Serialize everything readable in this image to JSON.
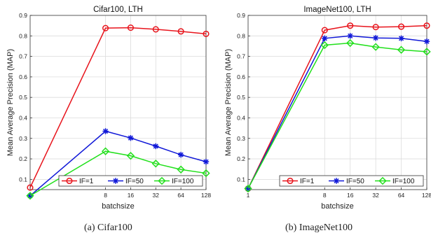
{
  "chart_data": [
    {
      "type": "line",
      "title": "Cifar100, LTH",
      "xlabel": "batchsize",
      "ylabel": "Mean Average Precision (MAP)",
      "x": [
        "1",
        "8",
        "16",
        "32",
        "64",
        "128"
      ],
      "x_scale": "log2",
      "xlim": [
        1,
        128
      ],
      "ylim": [
        0.05,
        0.9
      ],
      "yticks": [
        "0.1",
        "0.2",
        "0.3",
        "0.4",
        "0.5",
        "0.6",
        "0.7",
        "0.8",
        "0.9"
      ],
      "grid": true,
      "legend_position": "bottom",
      "series": [
        {
          "name": "IF=1",
          "color": "#e8141c",
          "marker": "circle",
          "values": [
            0.06,
            0.838,
            0.84,
            0.832,
            0.822,
            0.81
          ]
        },
        {
          "name": "IF=50",
          "color": "#1018d8",
          "marker": "star",
          "values": [
            0.02,
            0.335,
            0.302,
            0.262,
            0.22,
            0.186
          ]
        },
        {
          "name": "IF=100",
          "color": "#22e01c",
          "marker": "diamond",
          "values": [
            0.02,
            0.237,
            0.215,
            0.177,
            0.148,
            0.13
          ]
        }
      ]
    },
    {
      "type": "line",
      "title": "ImageNet100, LTH",
      "xlabel": "batchsize",
      "ylabel": "Mean Average Precision (MAP)",
      "x": [
        "1",
        "8",
        "16",
        "32",
        "64",
        "128"
      ],
      "x_scale": "log2",
      "xlim": [
        1,
        128
      ],
      "ylim": [
        0.05,
        0.9
      ],
      "yticks": [
        "0.1",
        "0.2",
        "0.3",
        "0.4",
        "0.5",
        "0.6",
        "0.7",
        "0.8",
        "0.9"
      ],
      "grid": true,
      "legend_position": "bottom",
      "series": [
        {
          "name": "IF=1",
          "color": "#e8141c",
          "marker": "circle",
          "values": [
            0.055,
            0.828,
            0.85,
            0.843,
            0.845,
            0.85
          ]
        },
        {
          "name": "IF=50",
          "color": "#1018d8",
          "marker": "star",
          "values": [
            0.055,
            0.788,
            0.8,
            0.79,
            0.788,
            0.773
          ]
        },
        {
          "name": "IF=100",
          "color": "#22e01c",
          "marker": "diamond",
          "values": [
            0.055,
            0.755,
            0.765,
            0.746,
            0.732,
            0.723
          ]
        }
      ]
    }
  ],
  "captions": [
    "(a)  Cifar100",
    "(b)  ImageNet100"
  ]
}
